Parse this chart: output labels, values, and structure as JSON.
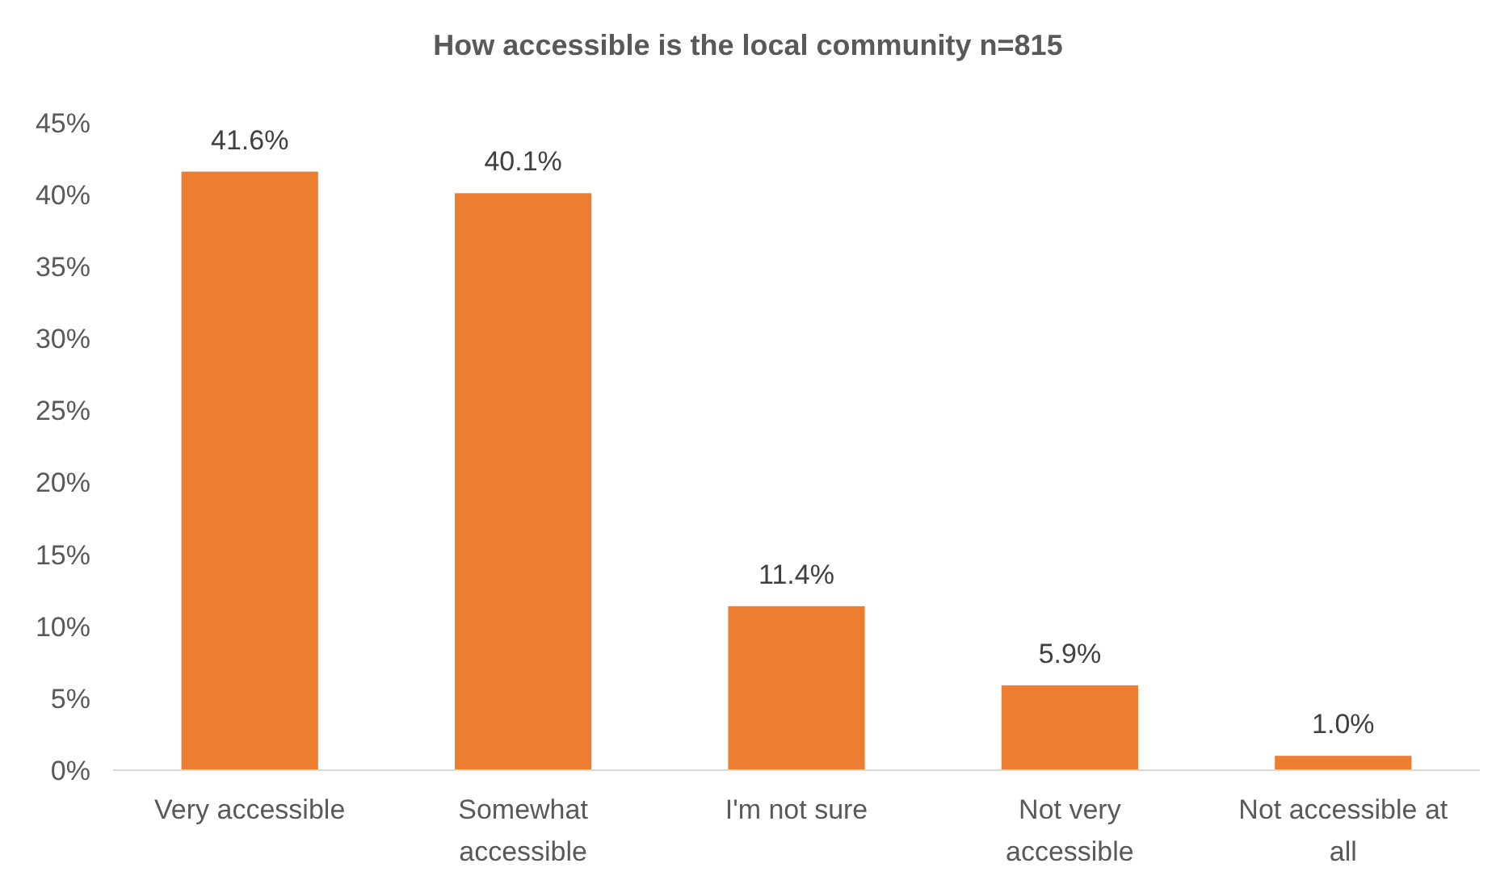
{
  "chart_data": {
    "type": "bar",
    "title": "How accessible is the local community n=815",
    "categories": [
      "Very accessible",
      "Somewhat accessible",
      "I'm not sure",
      "Not very accessible",
      "Not accessible at all"
    ],
    "values": [
      41.6,
      40.1,
      11.4,
      5.9,
      1.0
    ],
    "value_labels": [
      "41.6%",
      "40.1%",
      "11.4%",
      "5.9%",
      "1.0%"
    ],
    "color": "#ed7d31",
    "ylim": [
      0,
      45
    ],
    "yticks": [
      {
        "value": 0,
        "label": "0%"
      },
      {
        "value": 5,
        "label": "5%"
      },
      {
        "value": 10,
        "label": "10%"
      },
      {
        "value": 15,
        "label": "15%"
      },
      {
        "value": 20,
        "label": "20%"
      },
      {
        "value": 25,
        "label": "25%"
      },
      {
        "value": 30,
        "label": "30%"
      },
      {
        "value": 35,
        "label": "35%"
      },
      {
        "value": 40,
        "label": "40%"
      },
      {
        "value": 45,
        "label": "45%"
      }
    ],
    "grid": false
  }
}
